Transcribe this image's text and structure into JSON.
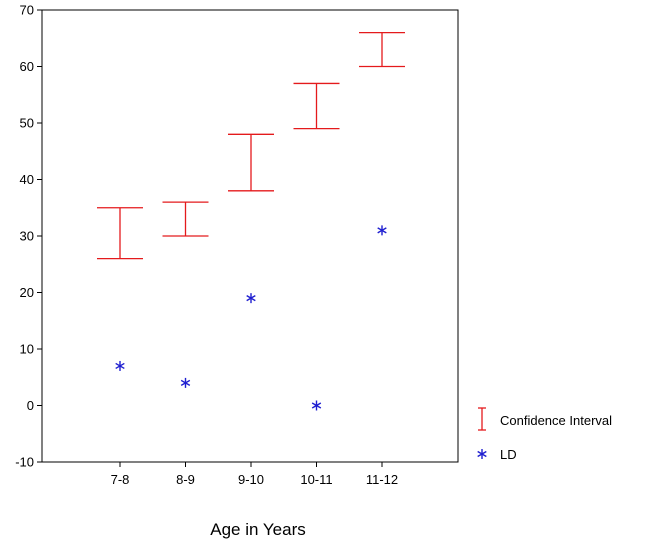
{
  "chart_data": {
    "type": "scatter",
    "title": "",
    "xlabel": "Age in Years",
    "ylabel": "",
    "categories": [
      "7-8",
      "8-9",
      "9-10",
      "10-11",
      "11-12"
    ],
    "ylim": [
      -10,
      70
    ],
    "yticks": [
      -10,
      0,
      10,
      20,
      30,
      40,
      50,
      60,
      70
    ],
    "grid": false,
    "legend_position": "bottom-right",
    "series": [
      {
        "name": "Confidence Interval",
        "kind": "interval",
        "color": "#e41a1c",
        "low": [
          26,
          30,
          38,
          49,
          60
        ],
        "high": [
          35,
          36,
          48,
          57,
          66
        ]
      },
      {
        "name": "LD",
        "kind": "point",
        "marker": "asterisk",
        "color": "#1f1fd0",
        "values": [
          7,
          4,
          19,
          0,
          31
        ]
      }
    ]
  }
}
